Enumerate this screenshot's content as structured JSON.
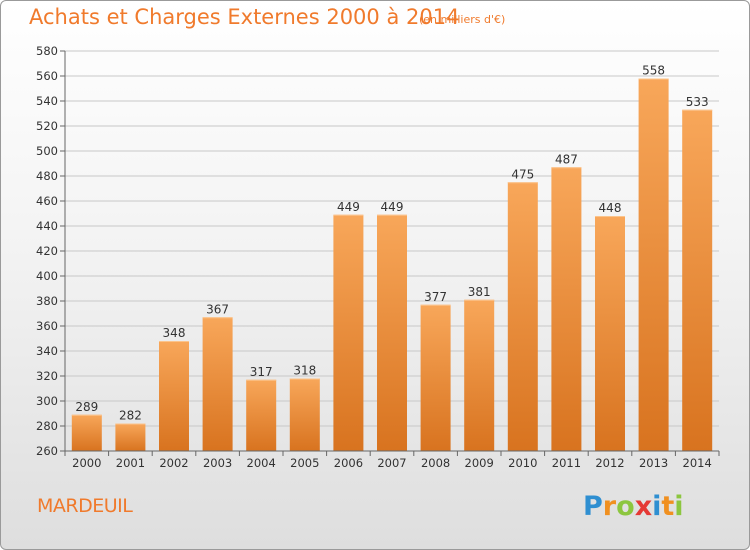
{
  "title": "Achats et Charges Externes 2000 à 2014",
  "subtitle": "(en milliers d'€)",
  "location": "MARDEUIL",
  "logo": {
    "letters": [
      "P",
      "r",
      "o",
      "x",
      "i",
      "t",
      "i"
    ],
    "colors": [
      "#2f8fd1",
      "#f09020",
      "#8cc63f",
      "#e53935",
      "#2f8fd1",
      "#f09020",
      "#8cc63f"
    ]
  },
  "colors": {
    "accent": "#f07a2c",
    "bar_light": "#f8a75a",
    "bar_dark": "#d8731f",
    "grid": "#c8c8c8",
    "text": "#333333"
  },
  "chart_data": {
    "type": "bar",
    "categories": [
      "2000",
      "2001",
      "2002",
      "2003",
      "2004",
      "2005",
      "2006",
      "2007",
      "2008",
      "2009",
      "2010",
      "2011",
      "2012",
      "2013",
      "2014"
    ],
    "values": [
      289,
      282,
      348,
      367,
      317,
      318,
      449,
      449,
      377,
      381,
      475,
      487,
      448,
      558,
      533
    ],
    "ylim": [
      260,
      580
    ],
    "yticks": [
      260,
      280,
      300,
      320,
      340,
      360,
      380,
      400,
      420,
      440,
      460,
      480,
      500,
      520,
      540,
      560,
      580
    ],
    "grid": true,
    "legend": "none"
  }
}
